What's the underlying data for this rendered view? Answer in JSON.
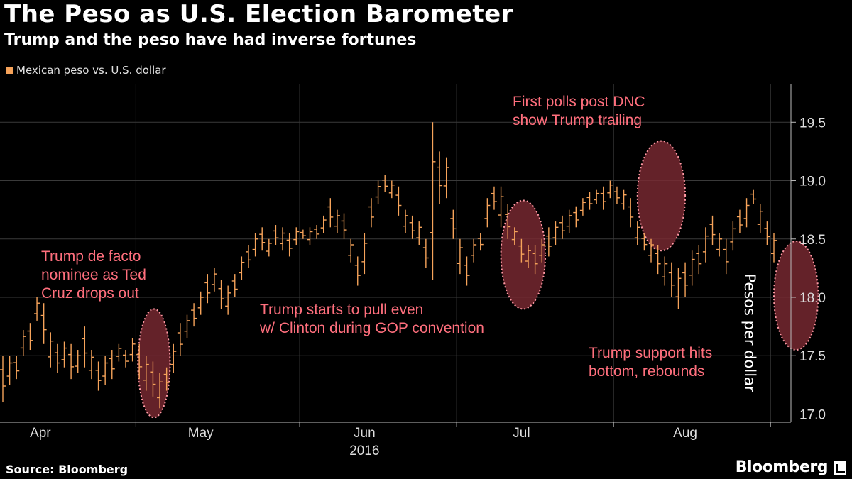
{
  "chart_data": {
    "type": "candlestick",
    "title": "The Peso as U.S. Election Barometer",
    "subtitle": "Trump and the peso have had inverse fortunes",
    "series": [
      {
        "name": "Mexican peso vs. U.S. dollar",
        "color": "#f6a35a",
        "ranges": [
          [
            17.1,
            17.5
          ],
          [
            17.25,
            17.5
          ],
          [
            17.3,
            17.5
          ],
          [
            17.5,
            17.72
          ],
          [
            17.55,
            17.78
          ],
          [
            17.8,
            18.0
          ],
          [
            17.6,
            17.95
          ],
          [
            17.4,
            17.7
          ],
          [
            17.35,
            17.6
          ],
          [
            17.4,
            17.62
          ],
          [
            17.3,
            17.6
          ],
          [
            17.35,
            17.55
          ],
          [
            17.4,
            17.75
          ],
          [
            17.3,
            17.55
          ],
          [
            17.2,
            17.45
          ],
          [
            17.25,
            17.5
          ],
          [
            17.3,
            17.55
          ],
          [
            17.45,
            17.6
          ],
          [
            17.4,
            17.55
          ],
          [
            17.45,
            17.65
          ],
          [
            17.3,
            17.6
          ],
          [
            17.2,
            17.5
          ],
          [
            17.15,
            17.45
          ],
          [
            17.05,
            17.35
          ],
          [
            17.2,
            17.4
          ],
          [
            17.35,
            17.6
          ],
          [
            17.5,
            17.78
          ],
          [
            17.65,
            17.85
          ],
          [
            17.75,
            17.95
          ],
          [
            17.85,
            18.05
          ],
          [
            17.95,
            18.2
          ],
          [
            18.05,
            18.25
          ],
          [
            17.9,
            18.15
          ],
          [
            17.85,
            18.1
          ],
          [
            18.0,
            18.2
          ],
          [
            18.15,
            18.35
          ],
          [
            18.25,
            18.45
          ],
          [
            18.35,
            18.55
          ],
          [
            18.4,
            18.6
          ],
          [
            18.35,
            18.5
          ],
          [
            18.45,
            18.62
          ],
          [
            18.4,
            18.6
          ],
          [
            18.35,
            18.55
          ],
          [
            18.45,
            18.6
          ],
          [
            18.5,
            18.58
          ],
          [
            18.45,
            18.6
          ],
          [
            18.5,
            18.62
          ],
          [
            18.55,
            18.7
          ],
          [
            18.6,
            18.85
          ],
          [
            18.55,
            18.75
          ],
          [
            18.5,
            18.72
          ],
          [
            18.3,
            18.5
          ],
          [
            18.1,
            18.35
          ],
          [
            18.2,
            18.55
          ],
          [
            18.6,
            18.85
          ],
          [
            18.8,
            19.0
          ],
          [
            18.9,
            19.05
          ],
          [
            18.85,
            19.0
          ],
          [
            18.7,
            18.95
          ],
          [
            18.55,
            18.75
          ],
          [
            18.5,
            18.7
          ],
          [
            18.45,
            18.65
          ],
          [
            18.25,
            18.5
          ],
          [
            18.15,
            19.5
          ],
          [
            18.8,
            19.25
          ],
          [
            18.85,
            19.2
          ],
          [
            18.5,
            18.75
          ],
          [
            18.2,
            18.5
          ],
          [
            18.1,
            18.35
          ],
          [
            18.3,
            18.5
          ],
          [
            18.4,
            18.55
          ],
          [
            18.6,
            18.85
          ],
          [
            18.75,
            18.95
          ],
          [
            18.6,
            18.95
          ],
          [
            18.5,
            18.8
          ],
          [
            18.45,
            18.6
          ],
          [
            18.3,
            18.5
          ],
          [
            18.25,
            18.45
          ],
          [
            18.2,
            18.45
          ],
          [
            18.3,
            18.5
          ],
          [
            18.35,
            18.6
          ],
          [
            18.45,
            18.65
          ],
          [
            18.5,
            18.7
          ],
          [
            18.55,
            18.75
          ],
          [
            18.6,
            18.78
          ],
          [
            18.7,
            18.85
          ],
          [
            18.75,
            18.9
          ],
          [
            18.8,
            18.92
          ],
          [
            18.75,
            18.95
          ],
          [
            18.85,
            19.0
          ],
          [
            18.8,
            18.95
          ],
          [
            18.75,
            18.92
          ],
          [
            18.6,
            18.85
          ],
          [
            18.45,
            18.65
          ],
          [
            18.4,
            18.55
          ],
          [
            18.3,
            18.5
          ],
          [
            18.2,
            18.45
          ],
          [
            18.1,
            18.35
          ],
          [
            18.0,
            18.3
          ],
          [
            17.9,
            18.25
          ],
          [
            18.0,
            18.3
          ],
          [
            18.1,
            18.4
          ],
          [
            18.2,
            18.45
          ],
          [
            18.3,
            18.6
          ],
          [
            18.45,
            18.7
          ],
          [
            18.35,
            18.55
          ],
          [
            18.2,
            18.5
          ],
          [
            18.4,
            18.65
          ],
          [
            18.55,
            18.75
          ],
          [
            18.6,
            18.85
          ],
          [
            18.8,
            18.92
          ],
          [
            18.55,
            18.8
          ],
          [
            18.45,
            18.65
          ],
          [
            18.3,
            18.55
          ]
        ]
      }
    ],
    "xlabel": "2016",
    "ylabel": "Pesos per dollar",
    "ylim": [
      16.93,
      19.83
    ],
    "yticks": [
      "17.0",
      "17.5",
      "18.0",
      "18.5",
      "19.0",
      "19.5"
    ],
    "months": [
      {
        "label": "Apr",
        "index": 5.5
      },
      {
        "label": "May",
        "index": 29
      },
      {
        "label": "Jun",
        "index": 53
      },
      {
        "label": "Jul",
        "index": 76
      },
      {
        "label": "Aug",
        "index": 100
      }
    ],
    "month_separators": [
      19.5,
      43.5,
      66.5,
      89.5,
      112.5
    ],
    "highlights": [
      {
        "i0": 19.8,
        "i1": 24.5,
        "y0": 16.97,
        "y1": 17.9
      },
      {
        "i0": 73,
        "i1": 79.5,
        "y0": 17.9,
        "y1": 18.83
      },
      {
        "i0": 93,
        "i1": 100,
        "y0": 18.4,
        "y1": 19.34
      },
      {
        "i0": 113,
        "i1": 119.5,
        "y0": 17.55,
        "y1": 18.48
      }
    ],
    "annotations": [
      {
        "lines": [
          "Trump de facto",
          "nominee as Ted",
          "Cruz drops out"
        ]
      },
      {
        "lines": [
          "Trump starts to pull even",
          "w/ Clinton during GOP convention"
        ]
      },
      {
        "lines": [
          "First polls post DNC",
          "show Trump trailing"
        ]
      },
      {
        "lines": [
          "Trump support hits",
          "bottom, rebounds"
        ]
      }
    ],
    "grid": true,
    "legend_position": "top-left",
    "annotation_color": "#ff6f7d",
    "highlight_color": "#7a2a32",
    "grid_color": "#3a3a3a"
  },
  "source": "Source: Bloomberg",
  "brand": "Bloomberg"
}
